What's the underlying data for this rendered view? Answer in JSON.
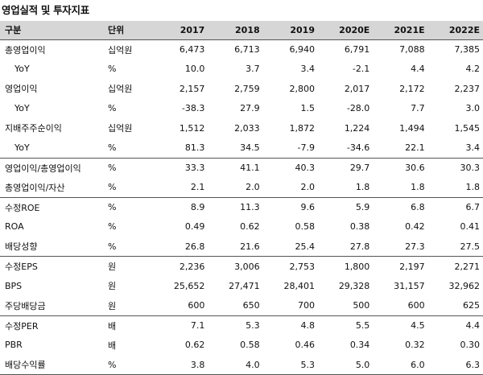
{
  "title": "영업실적 및 투자지표",
  "headers": {
    "label": "구분",
    "unit": "단위",
    "years": [
      "2017",
      "2018",
      "2019",
      "2020E",
      "2021E",
      "2022E"
    ]
  },
  "rows": [
    {
      "label": "총영업이익",
      "unit": "십억원",
      "values": [
        "6,473",
        "6,713",
        "6,940",
        "6,791",
        "7,088",
        "7,385"
      ]
    },
    {
      "label": "YoY",
      "unit": "%",
      "values": [
        "10.0",
        "3.7",
        "3.4",
        "-2.1",
        "4.4",
        "4.2"
      ]
    },
    {
      "label": "영업이익",
      "unit": "십억원",
      "values": [
        "2,157",
        "2,759",
        "2,800",
        "2,017",
        "2,172",
        "2,237"
      ]
    },
    {
      "label": "YoY",
      "unit": "%",
      "values": [
        "-38.3",
        "27.9",
        "1.5",
        "-28.0",
        "7.7",
        "3.0"
      ]
    },
    {
      "label": "지배주주순이익",
      "unit": "십억원",
      "values": [
        "1,512",
        "2,033",
        "1,872",
        "1,224",
        "1,494",
        "1,545"
      ]
    },
    {
      "label": "YoY",
      "unit": "%",
      "values": [
        "81.3",
        "34.5",
        "-7.9",
        "-34.6",
        "22.1",
        "3.4"
      ]
    },
    {
      "label": "영업이익/총영업이익",
      "unit": "%",
      "values": [
        "33.3",
        "41.1",
        "40.3",
        "29.7",
        "30.6",
        "30.3"
      ]
    },
    {
      "label": "총영업이익/자산",
      "unit": "%",
      "values": [
        "2.1",
        "2.0",
        "2.0",
        "1.8",
        "1.8",
        "1.8"
      ]
    },
    {
      "label": "수정ROE",
      "unit": "%",
      "values": [
        "8.9",
        "11.3",
        "9.6",
        "5.9",
        "6.8",
        "6.7"
      ]
    },
    {
      "label": "ROA",
      "unit": "%",
      "values": [
        "0.49",
        "0.62",
        "0.58",
        "0.38",
        "0.42",
        "0.41"
      ]
    },
    {
      "label": "배당성향",
      "unit": "%",
      "values": [
        "26.8",
        "21.6",
        "25.4",
        "27.8",
        "27.3",
        "27.5"
      ]
    },
    {
      "label": "수정EPS",
      "unit": "원",
      "values": [
        "2,236",
        "3,006",
        "2,753",
        "1,800",
        "2,197",
        "2,271"
      ]
    },
    {
      "label": "BPS",
      "unit": "원",
      "values": [
        "25,652",
        "27,471",
        "28,401",
        "29,328",
        "31,157",
        "32,962"
      ]
    },
    {
      "label": "주당배당금",
      "unit": "원",
      "values": [
        "600",
        "650",
        "700",
        "500",
        "600",
        "625"
      ]
    },
    {
      "label": "수정PER",
      "unit": "배",
      "values": [
        "7.1",
        "5.3",
        "4.8",
        "5.5",
        "4.5",
        "4.4"
      ]
    },
    {
      "label": "PBR",
      "unit": "배",
      "values": [
        "0.62",
        "0.58",
        "0.46",
        "0.34",
        "0.32",
        "0.30"
      ]
    },
    {
      "label": "배당수익률",
      "unit": "%",
      "values": [
        "3.8",
        "4.0",
        "5.3",
        "5.0",
        "6.0",
        "6.3"
      ]
    }
  ]
}
